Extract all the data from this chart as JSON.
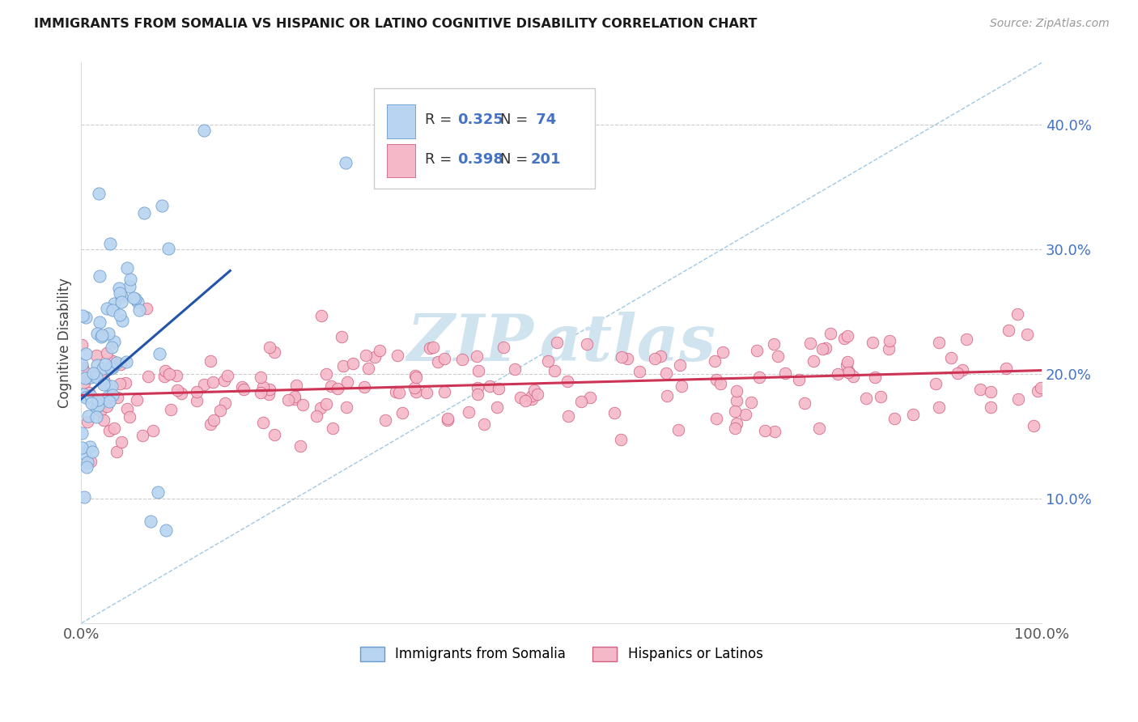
{
  "title": "IMMIGRANTS FROM SOMALIA VS HISPANIC OR LATINO COGNITIVE DISABILITY CORRELATION CHART",
  "source": "Source: ZipAtlas.com",
  "ylabel": "Cognitive Disability",
  "xlim": [
    0.0,
    1.0
  ],
  "ylim": [
    0.0,
    0.45
  ],
  "yticks": [
    0.1,
    0.2,
    0.3,
    0.4
  ],
  "ytick_labels": [
    "10.0%",
    "20.0%",
    "30.0%",
    "40.0%"
  ],
  "xticks": [
    0.0,
    1.0
  ],
  "xtick_labels": [
    "0.0%",
    "100.0%"
  ],
  "series1_color": "#b8d4f0",
  "series1_edge_color": "#6699cc",
  "series2_color": "#f5b8c8",
  "series2_edge_color": "#d06080",
  "trendline1_color": "#2255aa",
  "trendline2_color": "#cc3355",
  "trendline_dashed_color": "#88bbdd",
  "watermark_color": "#d0e4f0",
  "background_color": "#ffffff",
  "grid_color": "#cccccc"
}
